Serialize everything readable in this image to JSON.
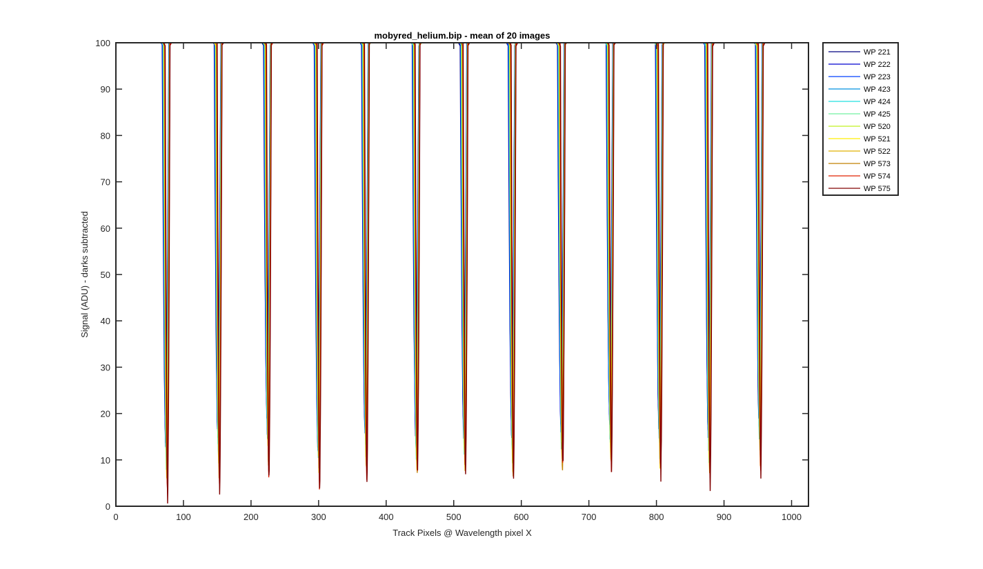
{
  "chart_data": {
    "type": "line",
    "title": "mobyred_helium.bip - mean of 20 images",
    "xlabel": "Track Pixels @ Wavelength pixel X",
    "ylabel": "Signal (ADU) - darks subtracted",
    "xlim": [
      0,
      1025
    ],
    "ylim": [
      0,
      100
    ],
    "xticks": [
      0,
      100,
      200,
      300,
      400,
      500,
      600,
      700,
      800,
      900,
      1000
    ],
    "yticks": [
      0,
      10,
      20,
      30,
      40,
      50,
      60,
      70,
      80,
      90,
      100
    ],
    "grid": false,
    "legend_position": "outside-top-right",
    "trough_centers": [
      75,
      152,
      225,
      300,
      370,
      445,
      516,
      587,
      660,
      732,
      805,
      878,
      953
    ],
    "series": [
      {
        "name": "WP 221",
        "color": "#000080",
        "minima": [
          14,
          17,
          20,
          16,
          18,
          17,
          18,
          17,
          18,
          20,
          18,
          17,
          20
        ]
      },
      {
        "name": "WP 222",
        "color": "#0000d0",
        "minima": [
          12,
          16,
          18,
          14,
          16,
          15,
          16,
          15,
          16,
          18,
          16,
          15,
          18
        ]
      },
      {
        "name": "WP 223",
        "color": "#0040ff",
        "minima": [
          11,
          14,
          17,
          13,
          15,
          14,
          15,
          14,
          15,
          17,
          15,
          14,
          17
        ]
      },
      {
        "name": "WP 423",
        "color": "#0090e0",
        "minima": [
          10,
          13,
          16,
          12,
          14,
          13,
          14,
          13,
          14,
          16,
          14,
          13,
          16
        ]
      },
      {
        "name": "WP 424",
        "color": "#20e0e0",
        "minima": [
          9,
          12,
          15,
          11,
          13,
          12,
          13,
          12,
          13,
          15,
          13,
          12,
          15
        ]
      },
      {
        "name": "WP 425",
        "color": "#70f0a0",
        "minima": [
          9,
          11,
          14,
          11,
          12,
          11,
          12,
          11,
          12,
          14,
          12,
          11,
          14
        ]
      },
      {
        "name": "WP 520",
        "color": "#c0f020",
        "minima": [
          8,
          10,
          13,
          10,
          11,
          10,
          11,
          10,
          11,
          13,
          11,
          10,
          13
        ]
      },
      {
        "name": "WP 521",
        "color": "#ffee00",
        "minima": [
          7,
          9,
          12,
          9,
          10,
          9,
          10,
          9,
          10,
          12,
          10,
          9,
          12
        ]
      },
      {
        "name": "WP 522",
        "color": "#e0b000",
        "minima": [
          6,
          8,
          10,
          8,
          9,
          8,
          9,
          8,
          9,
          11,
          9,
          8,
          10
        ]
      },
      {
        "name": "WP 573",
        "color": "#c08000",
        "minima": [
          5,
          7,
          9,
          7,
          8,
          8,
          8,
          7,
          8,
          10,
          8,
          7,
          9
        ]
      },
      {
        "name": "WP 574",
        "color": "#e02000",
        "minima": [
          3,
          5,
          7,
          5,
          7,
          8,
          7,
          7,
          8,
          9,
          8,
          6,
          8
        ]
      },
      {
        "name": "WP 575",
        "color": "#800000",
        "minima": [
          2,
          3,
          5,
          4,
          6,
          8,
          7,
          7,
          8,
          9,
          7,
          4,
          7
        ]
      }
    ]
  }
}
